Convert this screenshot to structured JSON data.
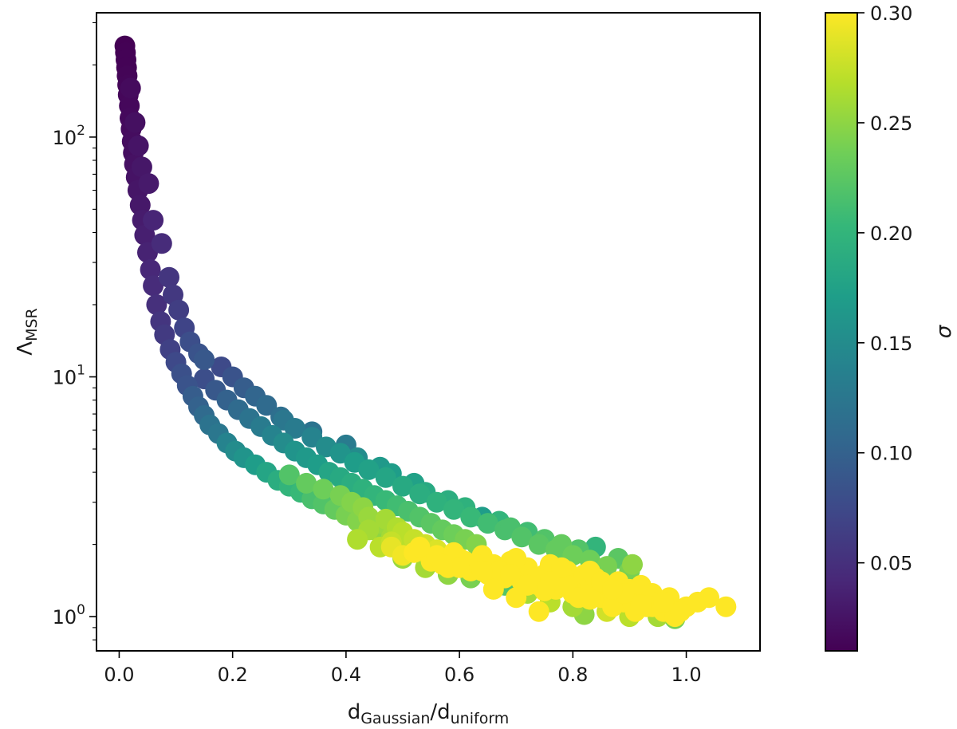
{
  "chart_data": {
    "type": "scatter",
    "title": "",
    "xlabel": {
      "main": "d",
      "sub1": "Gaussian",
      "sep": "/d",
      "sub2": "uniform"
    },
    "ylabel": {
      "main": "Λ",
      "sub": "MSR"
    },
    "xlim": [
      -0.04,
      1.13
    ],
    "ylim": [
      0.72,
      330
    ],
    "yscale": "log",
    "x_ticks": [
      0.0,
      0.2,
      0.4,
      0.6,
      0.8,
      1.0
    ],
    "x_tick_labels": [
      "0.0",
      "0.2",
      "0.4",
      "0.6",
      "0.8",
      "1.0"
    ],
    "y_ticks": [
      1,
      10,
      100
    ],
    "y_tick_labels": [
      {
        "base": "10",
        "exp": "0"
      },
      {
        "base": "10",
        "exp": "1"
      },
      {
        "base": "10",
        "exp": "2"
      }
    ],
    "grid": false,
    "colorbar": {
      "label": "σ",
      "range": [
        0.01,
        0.3
      ],
      "ticks": [
        0.05,
        0.1,
        0.15,
        0.2,
        0.25,
        0.3
      ],
      "tick_labels": [
        "0.05",
        "0.10",
        "0.15",
        "0.20",
        "0.25",
        "0.30"
      ],
      "colormap": "viridis",
      "stops": [
        "#440154",
        "#482878",
        "#3e4989",
        "#31688e",
        "#26828e",
        "#1f9e89",
        "#35b779",
        "#6ece58",
        "#b5de2b",
        "#fde725"
      ]
    },
    "points": [
      {
        "x": 0.01,
        "y": 240,
        "c": 0.01
      },
      {
        "x": 0.011,
        "y": 225,
        "c": 0.011
      },
      {
        "x": 0.012,
        "y": 210,
        "c": 0.012
      },
      {
        "x": 0.013,
        "y": 195,
        "c": 0.012
      },
      {
        "x": 0.014,
        "y": 180,
        "c": 0.013
      },
      {
        "x": 0.015,
        "y": 165,
        "c": 0.014
      },
      {
        "x": 0.016,
        "y": 150,
        "c": 0.015
      },
      {
        "x": 0.018,
        "y": 135,
        "c": 0.016
      },
      {
        "x": 0.019,
        "y": 120,
        "c": 0.017
      },
      {
        "x": 0.021,
        "y": 108,
        "c": 0.018
      },
      {
        "x": 0.023,
        "y": 96,
        "c": 0.02
      },
      {
        "x": 0.025,
        "y": 86,
        "c": 0.021
      },
      {
        "x": 0.027,
        "y": 77,
        "c": 0.023
      },
      {
        "x": 0.03,
        "y": 68,
        "c": 0.025
      },
      {
        "x": 0.033,
        "y": 60,
        "c": 0.027
      },
      {
        "x": 0.037,
        "y": 52,
        "c": 0.029
      },
      {
        "x": 0.041,
        "y": 45,
        "c": 0.032
      },
      {
        "x": 0.045,
        "y": 39,
        "c": 0.035
      },
      {
        "x": 0.05,
        "y": 33,
        "c": 0.038
      },
      {
        "x": 0.055,
        "y": 28,
        "c": 0.042
      },
      {
        "x": 0.06,
        "y": 24,
        "c": 0.046
      },
      {
        "x": 0.066,
        "y": 20,
        "c": 0.05
      },
      {
        "x": 0.073,
        "y": 17,
        "c": 0.055
      },
      {
        "x": 0.08,
        "y": 15,
        "c": 0.06
      },
      {
        "x": 0.09,
        "y": 13,
        "c": 0.067
      },
      {
        "x": 0.1,
        "y": 11.5,
        "c": 0.074
      },
      {
        "x": 0.11,
        "y": 10.3,
        "c": 0.082
      },
      {
        "x": 0.02,
        "y": 160,
        "c": 0.018
      },
      {
        "x": 0.028,
        "y": 115,
        "c": 0.022
      },
      {
        "x": 0.034,
        "y": 92,
        "c": 0.026
      },
      {
        "x": 0.052,
        "y": 64,
        "c": 0.031
      },
      {
        "x": 0.04,
        "y": 75,
        "c": 0.028
      },
      {
        "x": 0.06,
        "y": 45,
        "c": 0.04
      },
      {
        "x": 0.075,
        "y": 36,
        "c": 0.046
      },
      {
        "x": 0.088,
        "y": 26,
        "c": 0.056
      },
      {
        "x": 0.095,
        "y": 22,
        "c": 0.058
      },
      {
        "x": 0.105,
        "y": 19,
        "c": 0.064
      },
      {
        "x": 0.115,
        "y": 16,
        "c": 0.07
      },
      {
        "x": 0.125,
        "y": 14,
        "c": 0.08
      },
      {
        "x": 0.14,
        "y": 12.5,
        "c": 0.085
      },
      {
        "x": 0.15,
        "y": 11.8,
        "c": 0.09
      },
      {
        "x": 0.12,
        "y": 9.2,
        "c": 0.085
      },
      {
        "x": 0.13,
        "y": 8.3,
        "c": 0.095
      },
      {
        "x": 0.14,
        "y": 7.5,
        "c": 0.1
      },
      {
        "x": 0.15,
        "y": 6.9,
        "c": 0.11
      },
      {
        "x": 0.16,
        "y": 6.3,
        "c": 0.12
      },
      {
        "x": 0.175,
        "y": 5.8,
        "c": 0.125
      },
      {
        "x": 0.19,
        "y": 5.3,
        "c": 0.14
      },
      {
        "x": 0.205,
        "y": 4.9,
        "c": 0.15
      },
      {
        "x": 0.22,
        "y": 4.6,
        "c": 0.16
      },
      {
        "x": 0.24,
        "y": 4.3,
        "c": 0.17
      },
      {
        "x": 0.26,
        "y": 4.0,
        "c": 0.18
      },
      {
        "x": 0.28,
        "y": 3.7,
        "c": 0.19
      },
      {
        "x": 0.3,
        "y": 3.5,
        "c": 0.2
      },
      {
        "x": 0.32,
        "y": 3.3,
        "c": 0.205
      },
      {
        "x": 0.34,
        "y": 3.1,
        "c": 0.215
      },
      {
        "x": 0.36,
        "y": 2.95,
        "c": 0.22
      },
      {
        "x": 0.38,
        "y": 2.8,
        "c": 0.23
      },
      {
        "x": 0.4,
        "y": 2.65,
        "c": 0.24
      },
      {
        "x": 0.42,
        "y": 2.5,
        "c": 0.245
      },
      {
        "x": 0.45,
        "y": 2.3,
        "c": 0.25
      },
      {
        "x": 0.48,
        "y": 2.15,
        "c": 0.26
      },
      {
        "x": 0.51,
        "y": 2.0,
        "c": 0.27
      },
      {
        "x": 0.54,
        "y": 1.85,
        "c": 0.28
      },
      {
        "x": 0.57,
        "y": 1.75,
        "c": 0.29
      },
      {
        "x": 0.6,
        "y": 1.65,
        "c": 0.3
      },
      {
        "x": 0.15,
        "y": 9.8,
        "c": 0.08
      },
      {
        "x": 0.17,
        "y": 8.8,
        "c": 0.09
      },
      {
        "x": 0.19,
        "y": 8.0,
        "c": 0.1
      },
      {
        "x": 0.21,
        "y": 7.3,
        "c": 0.11
      },
      {
        "x": 0.23,
        "y": 6.7,
        "c": 0.12
      },
      {
        "x": 0.25,
        "y": 6.2,
        "c": 0.13
      },
      {
        "x": 0.27,
        "y": 5.7,
        "c": 0.14
      },
      {
        "x": 0.29,
        "y": 5.3,
        "c": 0.15
      },
      {
        "x": 0.31,
        "y": 4.9,
        "c": 0.16
      },
      {
        "x": 0.33,
        "y": 4.6,
        "c": 0.165
      },
      {
        "x": 0.35,
        "y": 4.3,
        "c": 0.17
      },
      {
        "x": 0.37,
        "y": 4.0,
        "c": 0.18
      },
      {
        "x": 0.39,
        "y": 3.8,
        "c": 0.185
      },
      {
        "x": 0.41,
        "y": 3.6,
        "c": 0.19
      },
      {
        "x": 0.43,
        "y": 3.4,
        "c": 0.195
      },
      {
        "x": 0.45,
        "y": 3.2,
        "c": 0.2
      },
      {
        "x": 0.47,
        "y": 3.05,
        "c": 0.205
      },
      {
        "x": 0.49,
        "y": 2.9,
        "c": 0.21
      },
      {
        "x": 0.51,
        "y": 2.75,
        "c": 0.215
      },
      {
        "x": 0.53,
        "y": 2.6,
        "c": 0.22
      },
      {
        "x": 0.55,
        "y": 2.45,
        "c": 0.225
      },
      {
        "x": 0.57,
        "y": 2.3,
        "c": 0.23
      },
      {
        "x": 0.59,
        "y": 2.2,
        "c": 0.235
      },
      {
        "x": 0.61,
        "y": 2.1,
        "c": 0.24
      },
      {
        "x": 0.63,
        "y": 2.0,
        "c": 0.245
      },
      {
        "x": 0.18,
        "y": 11.0,
        "c": 0.075
      },
      {
        "x": 0.2,
        "y": 10.0,
        "c": 0.085
      },
      {
        "x": 0.22,
        "y": 9.0,
        "c": 0.095
      },
      {
        "x": 0.24,
        "y": 8.3,
        "c": 0.105
      },
      {
        "x": 0.26,
        "y": 7.6,
        "c": 0.11
      },
      {
        "x": 0.285,
        "y": 6.8,
        "c": 0.115
      },
      {
        "x": 0.31,
        "y": 6.1,
        "c": 0.13
      },
      {
        "x": 0.34,
        "y": 5.6,
        "c": 0.14
      },
      {
        "x": 0.365,
        "y": 5.1,
        "c": 0.15
      },
      {
        "x": 0.39,
        "y": 4.8,
        "c": 0.16
      },
      {
        "x": 0.415,
        "y": 4.4,
        "c": 0.17
      },
      {
        "x": 0.44,
        "y": 4.1,
        "c": 0.175
      },
      {
        "x": 0.47,
        "y": 3.8,
        "c": 0.18
      },
      {
        "x": 0.5,
        "y": 3.5,
        "c": 0.185
      },
      {
        "x": 0.53,
        "y": 3.25,
        "c": 0.19
      },
      {
        "x": 0.56,
        "y": 3.0,
        "c": 0.195
      },
      {
        "x": 0.59,
        "y": 2.8,
        "c": 0.2
      },
      {
        "x": 0.62,
        "y": 2.6,
        "c": 0.205
      },
      {
        "x": 0.65,
        "y": 2.45,
        "c": 0.21
      },
      {
        "x": 0.68,
        "y": 2.3,
        "c": 0.215
      },
      {
        "x": 0.71,
        "y": 2.15,
        "c": 0.22
      },
      {
        "x": 0.74,
        "y": 2.0,
        "c": 0.225
      },
      {
        "x": 0.77,
        "y": 1.9,
        "c": 0.23
      },
      {
        "x": 0.8,
        "y": 1.8,
        "c": 0.235
      },
      {
        "x": 0.83,
        "y": 1.72,
        "c": 0.235
      },
      {
        "x": 0.86,
        "y": 1.62,
        "c": 0.24
      },
      {
        "x": 0.9,
        "y": 1.55,
        "c": 0.24
      },
      {
        "x": 0.29,
        "y": 6.6,
        "c": 0.125
      },
      {
        "x": 0.34,
        "y": 5.9,
        "c": 0.12
      },
      {
        "x": 0.4,
        "y": 5.2,
        "c": 0.13
      },
      {
        "x": 0.42,
        "y": 4.6,
        "c": 0.15
      },
      {
        "x": 0.46,
        "y": 4.2,
        "c": 0.165
      },
      {
        "x": 0.48,
        "y": 3.95,
        "c": 0.17
      },
      {
        "x": 0.52,
        "y": 3.6,
        "c": 0.175
      },
      {
        "x": 0.54,
        "y": 3.3,
        "c": 0.185
      },
      {
        "x": 0.58,
        "y": 3.05,
        "c": 0.19
      },
      {
        "x": 0.61,
        "y": 2.85,
        "c": 0.195
      },
      {
        "x": 0.64,
        "y": 2.6,
        "c": 0.17
      },
      {
        "x": 0.67,
        "y": 2.5,
        "c": 0.2
      },
      {
        "x": 0.69,
        "y": 2.35,
        "c": 0.215
      },
      {
        "x": 0.72,
        "y": 2.25,
        "c": 0.21
      },
      {
        "x": 0.75,
        "y": 2.1,
        "c": 0.22
      },
      {
        "x": 0.78,
        "y": 2.0,
        "c": 0.23
      },
      {
        "x": 0.81,
        "y": 1.9,
        "c": 0.22
      },
      {
        "x": 0.84,
        "y": 1.95,
        "c": 0.2
      },
      {
        "x": 0.88,
        "y": 1.75,
        "c": 0.225
      },
      {
        "x": 0.905,
        "y": 1.65,
        "c": 0.25
      },
      {
        "x": 0.3,
        "y": 3.9,
        "c": 0.22
      },
      {
        "x": 0.33,
        "y": 3.6,
        "c": 0.23
      },
      {
        "x": 0.36,
        "y": 3.4,
        "c": 0.235
      },
      {
        "x": 0.39,
        "y": 3.2,
        "c": 0.24
      },
      {
        "x": 0.41,
        "y": 3.0,
        "c": 0.245
      },
      {
        "x": 0.43,
        "y": 2.85,
        "c": 0.25
      },
      {
        "x": 0.44,
        "y": 2.6,
        "c": 0.255
      },
      {
        "x": 0.46,
        "y": 2.45,
        "c": 0.255
      },
      {
        "x": 0.47,
        "y": 2.55,
        "c": 0.26
      },
      {
        "x": 0.49,
        "y": 2.35,
        "c": 0.265
      },
      {
        "x": 0.5,
        "y": 2.25,
        "c": 0.27
      },
      {
        "x": 0.52,
        "y": 2.1,
        "c": 0.275
      },
      {
        "x": 0.54,
        "y": 2.0,
        "c": 0.28
      },
      {
        "x": 0.56,
        "y": 1.9,
        "c": 0.285
      },
      {
        "x": 0.52,
        "y": 1.85,
        "c": 0.3
      },
      {
        "x": 0.55,
        "y": 1.7,
        "c": 0.3
      },
      {
        "x": 0.58,
        "y": 1.6,
        "c": 0.3
      },
      {
        "x": 0.6,
        "y": 1.75,
        "c": 0.3
      },
      {
        "x": 0.62,
        "y": 1.55,
        "c": 0.3
      },
      {
        "x": 0.64,
        "y": 1.8,
        "c": 0.3
      },
      {
        "x": 0.65,
        "y": 1.5,
        "c": 0.3
      },
      {
        "x": 0.66,
        "y": 1.65,
        "c": 0.3
      },
      {
        "x": 0.68,
        "y": 1.45,
        "c": 0.3
      },
      {
        "x": 0.69,
        "y": 1.7,
        "c": 0.3
      },
      {
        "x": 0.7,
        "y": 1.55,
        "c": 0.3
      },
      {
        "x": 0.71,
        "y": 1.4,
        "c": 0.3
      },
      {
        "x": 0.72,
        "y": 1.6,
        "c": 0.3
      },
      {
        "x": 0.74,
        "y": 1.35,
        "c": 0.3
      },
      {
        "x": 0.75,
        "y": 1.5,
        "c": 0.3
      },
      {
        "x": 0.76,
        "y": 1.65,
        "c": 0.3
      },
      {
        "x": 0.77,
        "y": 1.3,
        "c": 0.3
      },
      {
        "x": 0.78,
        "y": 1.45,
        "c": 0.3
      },
      {
        "x": 0.79,
        "y": 1.55,
        "c": 0.3
      },
      {
        "x": 0.8,
        "y": 1.25,
        "c": 0.3
      },
      {
        "x": 0.81,
        "y": 1.4,
        "c": 0.3
      },
      {
        "x": 0.82,
        "y": 1.5,
        "c": 0.3
      },
      {
        "x": 0.83,
        "y": 1.3,
        "c": 0.3
      },
      {
        "x": 0.84,
        "y": 1.45,
        "c": 0.3
      },
      {
        "x": 0.85,
        "y": 1.2,
        "c": 0.3
      },
      {
        "x": 0.86,
        "y": 1.35,
        "c": 0.3
      },
      {
        "x": 0.87,
        "y": 1.25,
        "c": 0.3
      },
      {
        "x": 0.88,
        "y": 1.4,
        "c": 0.3
      },
      {
        "x": 0.89,
        "y": 1.15,
        "c": 0.3
      },
      {
        "x": 0.9,
        "y": 1.3,
        "c": 0.3
      },
      {
        "x": 0.91,
        "y": 1.2,
        "c": 0.3
      },
      {
        "x": 0.92,
        "y": 1.35,
        "c": 0.3
      },
      {
        "x": 0.93,
        "y": 1.1,
        "c": 0.3
      },
      {
        "x": 0.94,
        "y": 1.25,
        "c": 0.3
      },
      {
        "x": 0.95,
        "y": 1.15,
        "c": 0.3
      },
      {
        "x": 0.96,
        "y": 1.05,
        "c": 0.3
      },
      {
        "x": 0.97,
        "y": 1.2,
        "c": 0.3
      },
      {
        "x": 0.98,
        "y": 1.0,
        "c": 0.3
      },
      {
        "x": 1.0,
        "y": 1.1,
        "c": 0.3
      },
      {
        "x": 1.02,
        "y": 1.15,
        "c": 0.3
      },
      {
        "x": 1.04,
        "y": 1.2,
        "c": 0.3
      },
      {
        "x": 1.07,
        "y": 1.1,
        "c": 0.3
      },
      {
        "x": 0.48,
        "y": 1.95,
        "c": 0.29
      },
      {
        "x": 0.5,
        "y": 1.8,
        "c": 0.295
      },
      {
        "x": 0.53,
        "y": 1.95,
        "c": 0.3
      },
      {
        "x": 0.56,
        "y": 1.8,
        "c": 0.3
      },
      {
        "x": 0.59,
        "y": 1.85,
        "c": 0.3
      },
      {
        "x": 0.61,
        "y": 1.7,
        "c": 0.3
      },
      {
        "x": 0.63,
        "y": 1.65,
        "c": 0.3
      },
      {
        "x": 0.67,
        "y": 1.55,
        "c": 0.3
      },
      {
        "x": 0.7,
        "y": 1.75,
        "c": 0.3
      },
      {
        "x": 0.73,
        "y": 1.45,
        "c": 0.3
      },
      {
        "x": 0.76,
        "y": 1.4,
        "c": 0.3
      },
      {
        "x": 0.79,
        "y": 1.35,
        "c": 0.3
      },
      {
        "x": 0.81,
        "y": 1.2,
        "c": 0.3
      },
      {
        "x": 0.83,
        "y": 1.55,
        "c": 0.3
      },
      {
        "x": 0.85,
        "y": 1.4,
        "c": 0.3
      },
      {
        "x": 0.87,
        "y": 1.1,
        "c": 0.3
      },
      {
        "x": 0.89,
        "y": 1.25,
        "c": 0.3
      },
      {
        "x": 0.91,
        "y": 1.05,
        "c": 0.3
      },
      {
        "x": 0.94,
        "y": 1.1,
        "c": 0.3
      },
      {
        "x": 0.99,
        "y": 1.05,
        "c": 0.3
      },
      {
        "x": 0.74,
        "y": 1.05,
        "c": 0.3
      },
      {
        "x": 0.7,
        "y": 1.2,
        "c": 0.3
      },
      {
        "x": 0.66,
        "y": 1.3,
        "c": 0.3
      },
      {
        "x": 0.62,
        "y": 1.45,
        "c": 0.24
      },
      {
        "x": 0.68,
        "y": 1.35,
        "c": 0.22
      },
      {
        "x": 0.72,
        "y": 1.25,
        "c": 0.26
      },
      {
        "x": 0.76,
        "y": 1.15,
        "c": 0.27
      },
      {
        "x": 0.8,
        "y": 1.1,
        "c": 0.26
      },
      {
        "x": 0.82,
        "y": 1.02,
        "c": 0.25
      },
      {
        "x": 0.86,
        "y": 1.05,
        "c": 0.28
      },
      {
        "x": 0.9,
        "y": 1.0,
        "c": 0.27
      },
      {
        "x": 0.95,
        "y": 1.0,
        "c": 0.26
      },
      {
        "x": 0.98,
        "y": 0.98,
        "c": 0.24
      },
      {
        "x": 0.58,
        "y": 1.5,
        "c": 0.25
      },
      {
        "x": 0.54,
        "y": 1.6,
        "c": 0.26
      },
      {
        "x": 0.5,
        "y": 1.75,
        "c": 0.255
      },
      {
        "x": 0.46,
        "y": 1.95,
        "c": 0.27
      },
      {
        "x": 0.42,
        "y": 2.1,
        "c": 0.265
      },
      {
        "x": 0.44,
        "y": 2.3,
        "c": 0.26
      },
      {
        "x": 0.48,
        "y": 2.05,
        "c": 0.275
      },
      {
        "x": 0.75,
        "y": 1.28,
        "c": 0.3
      },
      {
        "x": 0.78,
        "y": 1.6,
        "c": 0.3
      },
      {
        "x": 0.72,
        "y": 1.35,
        "c": 0.3
      },
      {
        "x": 0.69,
        "y": 1.5,
        "c": 0.3
      },
      {
        "x": 0.64,
        "y": 1.55,
        "c": 0.3
      },
      {
        "x": 0.6,
        "y": 1.6,
        "c": 0.3
      },
      {
        "x": 0.57,
        "y": 1.65,
        "c": 0.3
      },
      {
        "x": 0.83,
        "y": 1.18,
        "c": 0.3
      },
      {
        "x": 0.87,
        "y": 1.3,
        "c": 0.3
      },
      {
        "x": 0.92,
        "y": 1.12,
        "c": 0.3
      },
      {
        "x": 0.96,
        "y": 1.15,
        "c": 0.3
      }
    ]
  }
}
